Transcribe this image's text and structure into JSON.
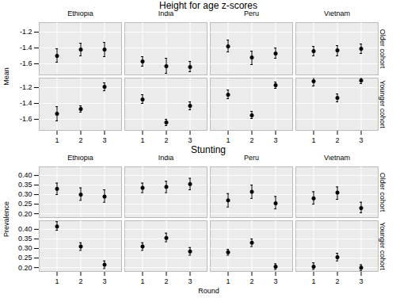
{
  "chart_data": [
    {
      "type": "scatter",
      "title": "Height for age z-scores",
      "y_label": "Mean",
      "x": [
        1,
        2,
        3
      ],
      "columns": [
        "Ethiopia",
        "India",
        "Peru",
        "Vietnam"
      ],
      "rows": [
        "Older cohort",
        "Younger cohort"
      ],
      "ylim": [
        -1.74,
        -1.08
      ],
      "yticks": [
        -1.6,
        -1.4,
        -1.2
      ],
      "grid": true,
      "color": "#000000",
      "marker": "circle",
      "panels": [
        {
          "column": "Ethiopia",
          "row": "Older cohort",
          "values": [
            -1.5,
            -1.42,
            -1.42
          ],
          "lower": [
            -1.58,
            -1.5,
            -1.51
          ],
          "upper": [
            -1.41,
            -1.34,
            -1.33
          ]
        },
        {
          "column": "India",
          "row": "Older cohort",
          "values": [
            -1.57,
            -1.63,
            -1.64
          ],
          "lower": [
            -1.63,
            -1.72,
            -1.7
          ],
          "upper": [
            -1.51,
            -1.53,
            -1.57
          ]
        },
        {
          "column": "Peru",
          "row": "Older cohort",
          "values": [
            -1.38,
            -1.52,
            -1.47
          ],
          "lower": [
            -1.45,
            -1.61,
            -1.53
          ],
          "upper": [
            -1.3,
            -1.44,
            -1.4
          ]
        },
        {
          "column": "Vietnam",
          "row": "Older cohort",
          "values": [
            -1.44,
            -1.43,
            -1.41
          ],
          "lower": [
            -1.5,
            -1.5,
            -1.47
          ],
          "upper": [
            -1.38,
            -1.37,
            -1.35
          ]
        },
        {
          "column": "Ethiopia",
          "row": "Younger cohort",
          "values": [
            -1.53,
            -1.47,
            -1.19
          ],
          "lower": [
            -1.62,
            -1.51,
            -1.24
          ],
          "upper": [
            -1.44,
            -1.43,
            -1.14
          ]
        },
        {
          "column": "India",
          "row": "Younger cohort",
          "values": [
            -1.35,
            -1.64,
            -1.43
          ],
          "lower": [
            -1.4,
            -1.68,
            -1.48
          ],
          "upper": [
            -1.29,
            -1.6,
            -1.38
          ]
        },
        {
          "column": "Peru",
          "row": "Younger cohort",
          "values": [
            -1.29,
            -1.55,
            -1.17
          ],
          "lower": [
            -1.34,
            -1.59,
            -1.21
          ],
          "upper": [
            -1.23,
            -1.5,
            -1.13
          ]
        },
        {
          "column": "Vietnam",
          "row": "Younger cohort",
          "values": [
            -1.12,
            -1.33,
            -1.11
          ],
          "lower": [
            -1.18,
            -1.38,
            -1.15
          ],
          "upper": [
            -1.06,
            -1.28,
            -1.07
          ]
        }
      ]
    },
    {
      "type": "scatter",
      "title": "Stunting",
      "y_label": "Prevalence",
      "x_label": "Round",
      "x": [
        1,
        2,
        3
      ],
      "columns": [
        "Ethiopia",
        "India",
        "Peru",
        "Vietnam"
      ],
      "rows": [
        "Older cohort",
        "Younger cohort"
      ],
      "ylim": [
        0.18,
        0.445
      ],
      "yticks": [
        {
          "value": 0.2,
          "label": "0.20"
        },
        0.25,
        {
          "value": 0.3,
          "label": "0.30"
        },
        0.35,
        {
          "value": 0.4,
          "label": "0.40"
        }
      ],
      "grid": true,
      "color": "#000000",
      "marker": "circle",
      "panels": [
        {
          "column": "Ethiopia",
          "row": "Older cohort",
          "values": [
            0.33,
            0.3,
            0.29
          ],
          "lower": [
            0.3,
            0.27,
            0.26
          ],
          "upper": [
            0.36,
            0.335,
            0.325
          ]
        },
        {
          "column": "India",
          "row": "Older cohort",
          "values": [
            0.335,
            0.34,
            0.355
          ],
          "lower": [
            0.31,
            0.31,
            0.325
          ],
          "upper": [
            0.36,
            0.37,
            0.385
          ]
        },
        {
          "column": "Peru",
          "row": "Older cohort",
          "values": [
            0.27,
            0.315,
            0.255
          ],
          "lower": [
            0.235,
            0.28,
            0.225
          ],
          "upper": [
            0.305,
            0.35,
            0.29
          ]
        },
        {
          "column": "Vietnam",
          "row": "Older cohort",
          "values": [
            0.28,
            0.31,
            0.23
          ],
          "lower": [
            0.25,
            0.275,
            0.205
          ],
          "upper": [
            0.315,
            0.34,
            0.26
          ]
        },
        {
          "column": "Ethiopia",
          "row": "Younger cohort",
          "values": [
            0.415,
            0.31,
            0.215
          ],
          "lower": [
            0.395,
            0.29,
            0.195
          ],
          "upper": [
            0.44,
            0.33,
            0.235
          ]
        },
        {
          "column": "India",
          "row": "Younger cohort",
          "values": [
            0.31,
            0.355,
            0.285
          ],
          "lower": [
            0.29,
            0.335,
            0.265
          ],
          "upper": [
            0.33,
            0.38,
            0.305
          ]
        },
        {
          "column": "Peru",
          "row": "Younger cohort",
          "values": [
            0.28,
            0.33,
            0.205
          ],
          "lower": [
            0.265,
            0.31,
            0.19
          ],
          "upper": [
            0.295,
            0.35,
            0.22
          ]
        },
        {
          "column": "Vietnam",
          "row": "Younger cohort",
          "values": [
            0.205,
            0.255,
            0.2
          ],
          "lower": [
            0.19,
            0.235,
            0.185
          ],
          "upper": [
            0.225,
            0.275,
            0.215
          ]
        }
      ]
    }
  ]
}
